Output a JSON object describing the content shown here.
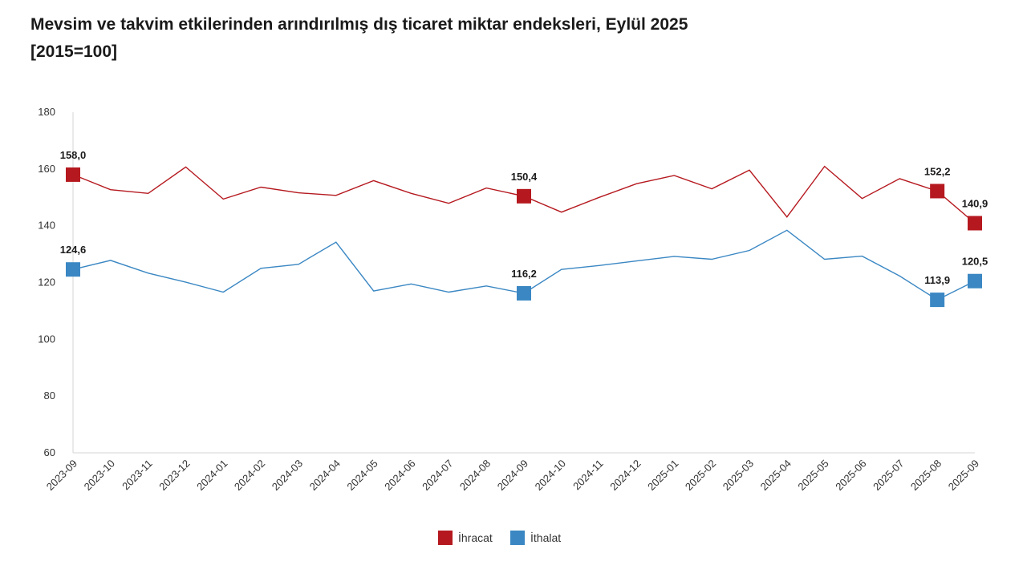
{
  "chart_data": {
    "type": "line",
    "title_line1": "Mevsim ve takvim etkilerinden arındırılmış dış ticaret miktar endeksleri, Eylül 2025",
    "title_line2": "[2015=100]",
    "xlabel": "",
    "ylabel": "",
    "ylim": [
      60,
      180
    ],
    "yticks": [
      "60",
      "80",
      "100",
      "120",
      "140",
      "160",
      "180"
    ],
    "grid": false,
    "legend_position": "bottom-center",
    "categories": [
      "2023-09",
      "2023-10",
      "2023-11",
      "2023-12",
      "2024-01",
      "2024-02",
      "2024-03",
      "2024-04",
      "2024-05",
      "2024-06",
      "2024-07",
      "2024-08",
      "2024-09",
      "2024-10",
      "2024-11",
      "2024-12",
      "2025-01",
      "2025-02",
      "2025-03",
      "2025-04",
      "2025-05",
      "2025-06",
      "2025-07",
      "2025-08",
      "2025-09"
    ],
    "series": [
      {
        "name": "İhracat",
        "color": "#b5191f",
        "values": [
          158.0,
          152.7,
          151.4,
          160.7,
          149.4,
          153.6,
          151.6,
          150.7,
          155.9,
          151.4,
          147.9,
          153.3,
          150.4,
          144.8,
          150.0,
          154.8,
          157.7,
          153.0,
          159.6,
          143.1,
          160.9,
          149.6,
          156.6,
          152.2,
          140.9
        ],
        "labeled": [
          {
            "index": 0,
            "text": "158,0"
          },
          {
            "index": 12,
            "text": "150,4"
          },
          {
            "index": 23,
            "text": "152,2"
          },
          {
            "index": 24,
            "text": "140,9"
          }
        ]
      },
      {
        "name": "İthalat",
        "color": "#3a87c3",
        "values": [
          124.6,
          127.8,
          123.3,
          120.1,
          116.6,
          125.0,
          126.4,
          134.2,
          117.0,
          119.5,
          116.6,
          118.8,
          116.2,
          124.6,
          126.0,
          127.6,
          129.2,
          128.2,
          131.3,
          138.4,
          128.2,
          129.3,
          122.3,
          113.9,
          120.5
        ],
        "labeled": [
          {
            "index": 0,
            "text": "124,6"
          },
          {
            "index": 12,
            "text": "116,2"
          },
          {
            "index": 23,
            "text": "113,9"
          },
          {
            "index": 24,
            "text": "120,5"
          }
        ]
      }
    ]
  }
}
